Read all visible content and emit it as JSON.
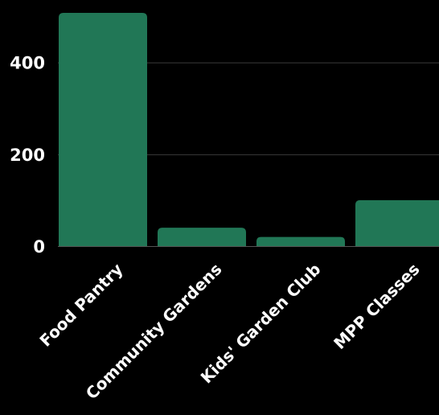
{
  "chart_data": {
    "type": "bar",
    "categories": [
      "Food Pantry",
      "Community Gardens",
      "Kids' Garden Club",
      "MPP Classes"
    ],
    "values": [
      508,
      40,
      20,
      100
    ],
    "ylim": [
      0,
      508
    ],
    "yticks": [
      0,
      200,
      400
    ],
    "ytick_labels": [
      "0",
      "200",
      "400"
    ],
    "grid": true,
    "bar_color": "#217756",
    "background": "#000000"
  }
}
